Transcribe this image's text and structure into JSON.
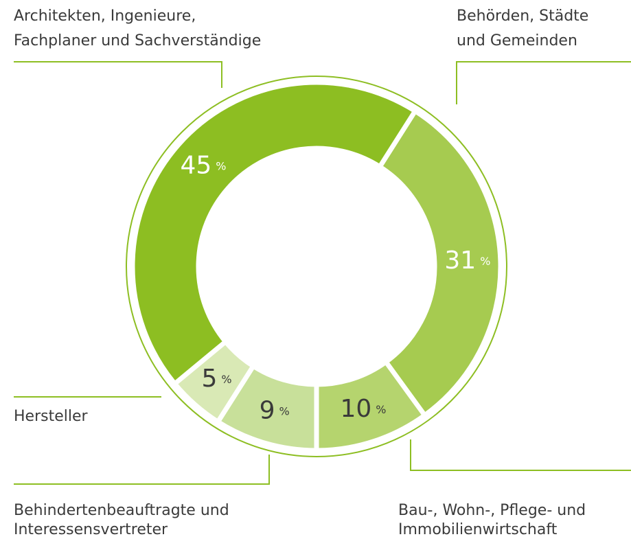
{
  "chart_data": {
    "type": "donut",
    "categories": [
      [
        "Behörden, Städte",
        "und Gemeinden"
      ],
      [
        "Bau-, Wohn-, Pflege- und",
        "Immobilienwirtschaft"
      ],
      [
        "Behindertenbeauftragte und",
        "Interessensvertreter"
      ],
      [
        "Hersteller"
      ],
      [
        "Architekten, Ingenieure,",
        "Fachplaner und Sachverständige"
      ]
    ],
    "values": [
      31,
      10,
      9,
      5,
      45
    ],
    "value_suffix": "%",
    "colors": [
      "#a6cb50",
      "#b5d46e",
      "#c8e09a",
      "#d9e9b5",
      "#8dbe22"
    ],
    "label_colors": [
      "#ffffff",
      "#3a3a3a",
      "#3a3a3a",
      "#3a3a3a",
      "#ffffff"
    ]
  }
}
